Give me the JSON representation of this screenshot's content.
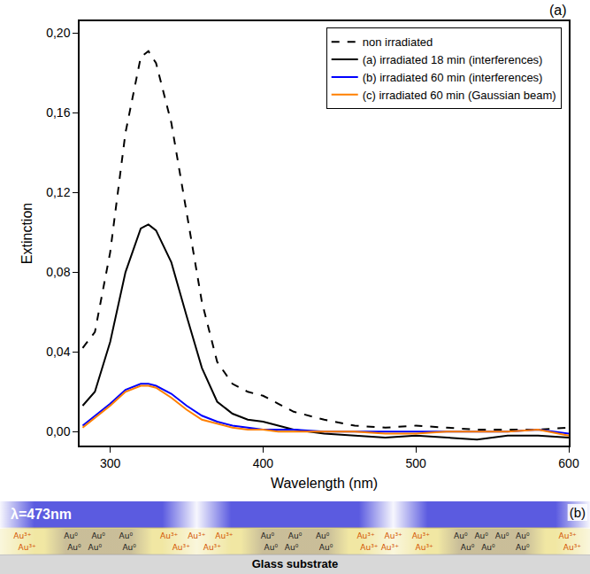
{
  "chart_data": {
    "type": "line",
    "panel_label": "(a)",
    "x_label": "Wavelength (nm)",
    "y_label": "Extinction",
    "x": [
      282,
      290,
      300,
      310,
      320,
      325,
      330,
      340,
      350,
      360,
      370,
      380,
      390,
      400,
      410,
      420,
      440,
      460,
      480,
      500,
      520,
      540,
      560,
      580,
      600
    ],
    "series": [
      {
        "name": "non irradiated",
        "color": "#000000",
        "line_style": "dash",
        "values": [
          0.042,
          0.05,
          0.09,
          0.15,
          0.188,
          0.191,
          0.185,
          0.155,
          0.11,
          0.065,
          0.035,
          0.024,
          0.02,
          0.018,
          0.014,
          0.01,
          0.006,
          0.003,
          0.002,
          0.003,
          0.002,
          0.001,
          0.001,
          0.001,
          0.002
        ]
      },
      {
        "name": "(a) irradiated 18 min (interferences)",
        "color": "#000000",
        "line_style": "solid",
        "values": [
          0.013,
          0.02,
          0.045,
          0.08,
          0.102,
          0.104,
          0.101,
          0.085,
          0.058,
          0.032,
          0.015,
          0.009,
          0.006,
          0.005,
          0.003,
          0.001,
          -0.001,
          -0.002,
          -0.003,
          -0.002,
          -0.003,
          -0.004,
          -0.002,
          -0.002,
          -0.003
        ]
      },
      {
        "name": "(b) irradiated 60 min (interferences)",
        "color": "#0000ff",
        "line_style": "solid",
        "values": [
          0.003,
          0.008,
          0.014,
          0.021,
          0.024,
          0.024,
          0.023,
          0.019,
          0.013,
          0.008,
          0.005,
          0.003,
          0.002,
          0.001,
          0.001,
          0.001,
          0.0,
          0.0,
          0.0,
          0.0,
          0.0,
          0.0,
          0.0,
          0.001,
          -0.001
        ]
      },
      {
        "name": "(c) irradiated 60 min (Gaussian beam)",
        "color": "#ff7f00",
        "line_style": "solid",
        "values": [
          0.002,
          0.007,
          0.013,
          0.02,
          0.023,
          0.023,
          0.022,
          0.017,
          0.011,
          0.006,
          0.004,
          0.002,
          0.001,
          0.001,
          0.0,
          0.0,
          0.0,
          0.0,
          -0.001,
          -0.001,
          0.0,
          0.0,
          0.0,
          0.001,
          -0.002
        ]
      }
    ],
    "xlim": [
      280,
      600
    ],
    "xticks": [
      300,
      400,
      500,
      600
    ],
    "ylim": [
      -0.007,
      0.206
    ],
    "yticks": [
      {
        "value": 0,
        "label": "0,00"
      },
      {
        "value": 0.04,
        "label": "0,04"
      },
      {
        "value": 0.08,
        "label": "0,08"
      },
      {
        "value": 0.12,
        "label": "0,12"
      },
      {
        "value": 0.16,
        "label": "0,16"
      },
      {
        "value": 0.2,
        "label": "0,20"
      }
    ],
    "grid": false,
    "legend": "top right"
  },
  "diagram": {
    "panel_label": "(b)",
    "beam_label": "λ=473nm",
    "substrate_label": "Glass substrate",
    "regions": [
      {
        "species": "Au³⁺",
        "labels": [
          "Au³⁺",
          "Au³⁺"
        ]
      },
      {
        "species": "Au⁰",
        "labels": [
          "Au⁰",
          "Au⁰",
          "Au⁰",
          "Au⁰",
          "Au⁰",
          "Au⁰"
        ]
      },
      {
        "species": "Au³⁺",
        "labels": [
          "Au³⁺",
          "Au³⁺",
          "Au³⁺",
          "Au³⁺",
          "Au³⁺"
        ]
      },
      {
        "species": "Au⁰",
        "labels": [
          "Au⁰",
          "Au⁰",
          "Au⁰",
          "Au⁰",
          "Au⁰",
          "Au⁰"
        ]
      },
      {
        "species": "Au³⁺",
        "labels": [
          "Au³⁺",
          "Au³⁺",
          "Au³⁺",
          "Au³⁺",
          "Au³⁺",
          "Au³⁺"
        ]
      },
      {
        "species": "Au⁰",
        "labels": [
          "Au⁰",
          "Au⁰",
          "Au⁰",
          "Au⁰",
          "Au⁰",
          "Au⁰",
          "Au⁰"
        ]
      },
      {
        "species": "Au³⁺",
        "labels": [
          "Au³⁺",
          "Au³⁺"
        ]
      }
    ]
  }
}
